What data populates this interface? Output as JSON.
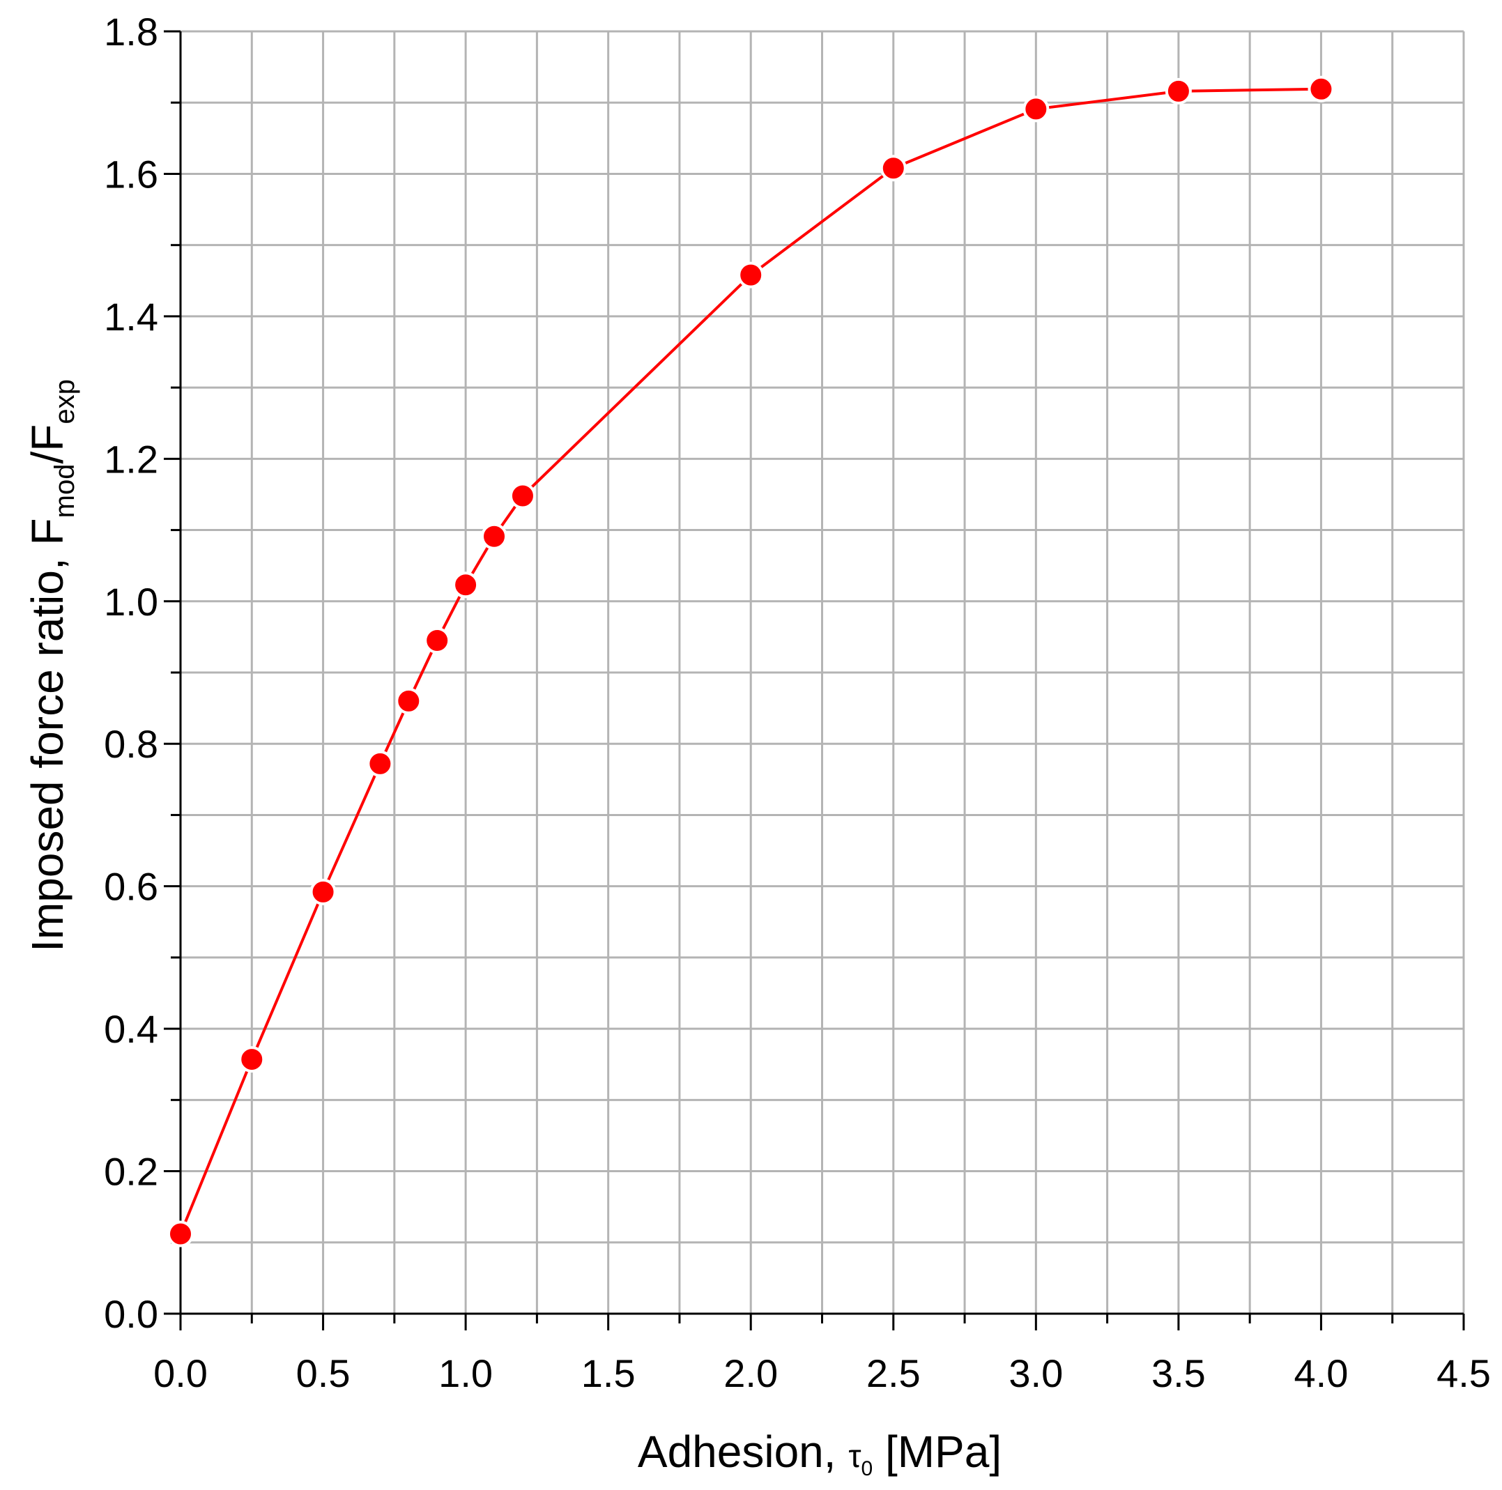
{
  "chart_data": {
    "type": "line",
    "title": "",
    "xlabel": {
      "main": "Adhesion, ",
      "symbol": "τ",
      "symbol_sub": "0",
      "unit": " [MPa]"
    },
    "ylabel": {
      "part1": "Imposed force ratio, F",
      "sub1": "mod",
      "part2": "/F",
      "sub2": "exp"
    },
    "xlim": [
      0,
      4.5
    ],
    "ylim": [
      0,
      1.8
    ],
    "x_ticks": [
      "0.0",
      "0.5",
      "1.0",
      "1.5",
      "2.0",
      "2.5",
      "3.0",
      "3.5",
      "4.0",
      "4.5"
    ],
    "y_ticks": [
      "0.0",
      "0.2",
      "0.4",
      "0.6",
      "0.8",
      "1.0",
      "1.2",
      "1.4",
      "1.6",
      "1.8"
    ],
    "grid": true,
    "color": "#ff0000",
    "series": [
      {
        "x": [
          0.0,
          0.25,
          0.5,
          0.7,
          0.8,
          0.9,
          1.0,
          1.1,
          1.2,
          2.0,
          2.5,
          3.0,
          3.5,
          4.0
        ],
        "y": [
          0.112,
          0.357,
          0.592,
          0.772,
          0.86,
          0.945,
          1.023,
          1.091,
          1.148,
          1.458,
          1.608,
          1.691,
          1.716,
          1.719
        ]
      }
    ]
  }
}
